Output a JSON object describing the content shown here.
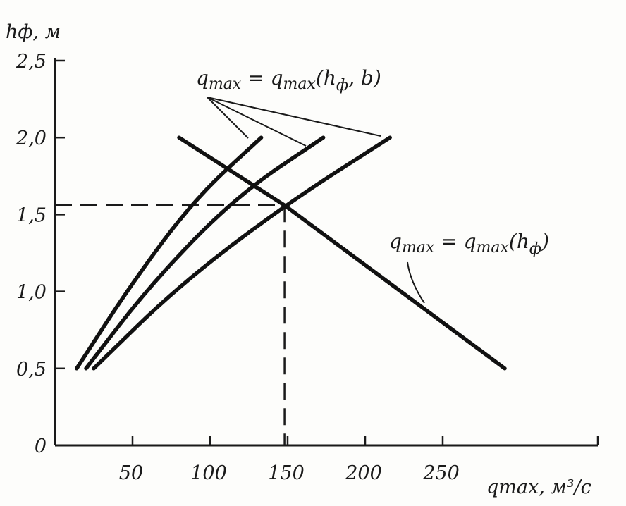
{
  "chart_data": {
    "type": "line",
    "y_title": "hф, м",
    "x_title": "qmax, м³/с",
    "x_ticks": [
      "50",
      "100",
      "150",
      "200",
      "250"
    ],
    "x_tick_values": [
      50,
      100,
      150,
      200,
      250
    ],
    "y_ticks": [
      "0",
      "0,5",
      "1,0",
      "1,5",
      "2,0",
      "2,5"
    ],
    "y_tick_values": [
      0,
      0.5,
      1.0,
      1.5,
      2.0,
      2.5
    ],
    "xlim": [
      0,
      350
    ],
    "ylim": [
      0,
      2.5
    ],
    "grid": false,
    "series": [
      {
        "name": "",
        "group": "qmax(hф, b)",
        "x": [
          14,
          50,
          90,
          133
        ],
        "y": [
          0.5,
          1.06,
          1.6,
          2.0
        ]
      },
      {
        "name": "",
        "group": "qmax(hф, b)",
        "x": [
          20,
          62,
          117,
          173
        ],
        "y": [
          0.5,
          1.05,
          1.62,
          2.0
        ]
      },
      {
        "name": "",
        "group": "qmax(hф, b)",
        "x": [
          25,
          80,
          148,
          216
        ],
        "y": [
          0.5,
          1.04,
          1.56,
          2.0
        ]
      },
      {
        "name": "",
        "group": "qmax(hф)",
        "x": [
          80,
          148,
          290
        ],
        "y": [
          2.0,
          1.56,
          0.5
        ]
      }
    ],
    "reference_point": {
      "x": 148,
      "y": 1.56
    },
    "annotations": {
      "family_label": {
        "q": "q",
        "sub1": "max",
        "eq": " = q",
        "sub2": "max",
        "args": "(h",
        "sub3": "ф",
        "tail": ", b)"
      },
      "single_label": {
        "q": "q",
        "sub1": "max",
        "eq": " = q",
        "sub2": "max",
        "args": "(h",
        "sub3": "ф",
        "tail": ")"
      }
    }
  }
}
